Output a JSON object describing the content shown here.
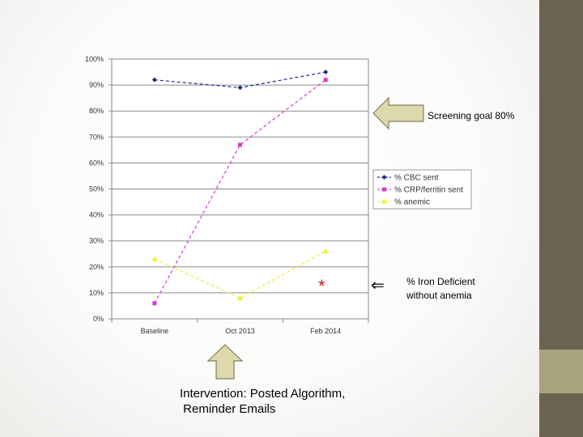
{
  "colors": {
    "series_cbc": "#1f2a8c",
    "series_crp": "#d63bd1",
    "series_anemic": "#f2ee2c",
    "side_band": "#6b6450",
    "side_block": "#a8a37e",
    "arrow_fill": "#ded8ad",
    "arrow_stroke": "#867e5d",
    "star": "#d8141a"
  },
  "annotations": {
    "screening_goal": "Screening goal 80%",
    "iron_deficient": "% Iron Deficient\nwithout anemia",
    "star": "*",
    "left_arrow_glyph": "⇐",
    "intervention": "Intervention: Posted Algorithm,\n Reminder Emails"
  },
  "chart_data": {
    "type": "line",
    "categories": [
      "Baseline",
      "Oct 2013",
      "Feb 2014"
    ],
    "y_ticks": [
      "0%",
      "10%",
      "20%",
      "30%",
      "40%",
      "50%",
      "60%",
      "70%",
      "80%",
      "90%",
      "100%"
    ],
    "ylim": [
      0,
      100
    ],
    "legend_position": "right",
    "series": [
      {
        "name": "% CBC sent",
        "values": [
          92,
          89,
          95
        ],
        "marker": "diamond"
      },
      {
        "name": "% CRP/ferritin sent",
        "values": [
          6,
          67,
          92
        ],
        "marker": "square"
      },
      {
        "name": "% anemic",
        "values": [
          23,
          8,
          26
        ],
        "marker": "triangle"
      }
    ]
  }
}
